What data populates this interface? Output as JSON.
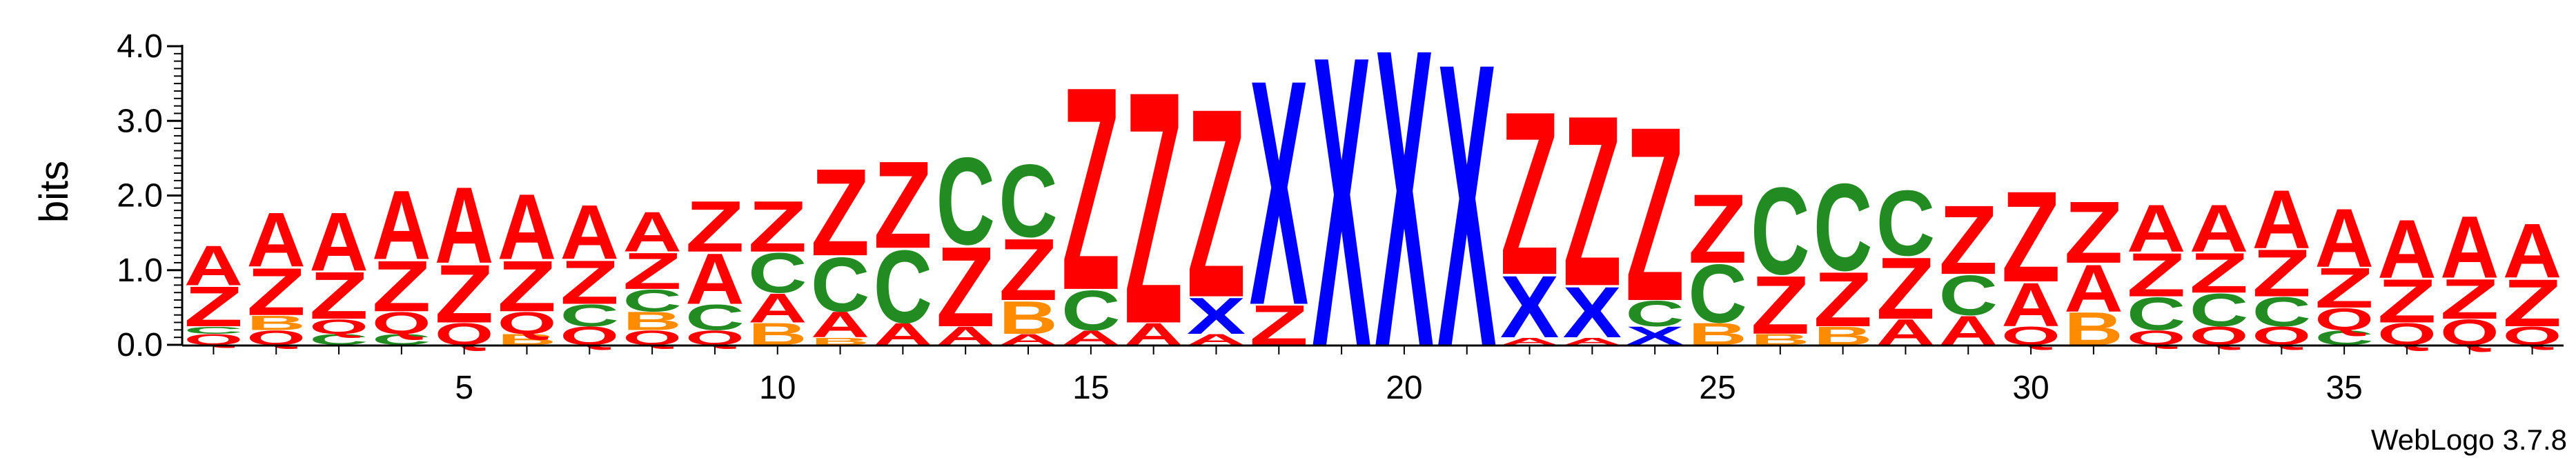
{
  "chart_data": {
    "type": "sequence-logo",
    "ylabel": "bits",
    "ylim": [
      0,
      4.0
    ],
    "yticks": [
      "0.0",
      "1.0",
      "2.0",
      "3.0",
      "4.0"
    ],
    "xticks": [
      "5",
      "10",
      "15",
      "20",
      "25",
      "30",
      "35"
    ],
    "xtick_positions": [
      5,
      10,
      15,
      20,
      25,
      30,
      35
    ],
    "credit": "WebLogo 3.7.8",
    "colors": {
      "A": "#ff0000",
      "Z": "#ff0000",
      "X": "#0000ff",
      "C": "#228b22",
      "B": "#ff8c00",
      "Q": "#ff0000"
    },
    "positions": [
      {
        "pos": 1,
        "stack": [
          [
            "Q",
            0.15
          ],
          [
            "C",
            0.1
          ],
          [
            "Z",
            0.55
          ],
          [
            "A",
            0.55
          ]
        ]
      },
      {
        "pos": 2,
        "stack": [
          [
            "Q",
            0.2
          ],
          [
            "B",
            0.2
          ],
          [
            "Z",
            0.65
          ],
          [
            "A",
            0.75
          ]
        ]
      },
      {
        "pos": 3,
        "stack": [
          [
            "C",
            0.15
          ],
          [
            "Q",
            0.2
          ],
          [
            "Z",
            0.65
          ],
          [
            "A",
            0.8
          ]
        ]
      },
      {
        "pos": 4,
        "stack": [
          [
            "C",
            0.15
          ],
          [
            "Q",
            0.3
          ],
          [
            "Z",
            0.7
          ],
          [
            "A",
            0.95
          ]
        ]
      },
      {
        "pos": 5,
        "stack": [
          [
            "Q",
            0.3
          ],
          [
            "Z",
            0.8
          ],
          [
            "A",
            1.05
          ]
        ]
      },
      {
        "pos": 6,
        "stack": [
          [
            "B",
            0.15
          ],
          [
            "Q",
            0.3
          ],
          [
            "Z",
            0.7
          ],
          [
            "A",
            0.9
          ]
        ]
      },
      {
        "pos": 7,
        "stack": [
          [
            "Q",
            0.25
          ],
          [
            "C",
            0.3
          ],
          [
            "Z",
            0.6
          ],
          [
            "A",
            0.75
          ]
        ]
      },
      {
        "pos": 8,
        "stack": [
          [
            "Q",
            0.2
          ],
          [
            "B",
            0.25
          ],
          [
            "C",
            0.3
          ],
          [
            "Z",
            0.5
          ],
          [
            "A",
            0.55
          ]
        ]
      },
      {
        "pos": 9,
        "stack": [
          [
            "Q",
            0.2
          ],
          [
            "C",
            0.35
          ],
          [
            "A",
            0.7
          ],
          [
            "Z",
            0.7
          ]
        ]
      },
      {
        "pos": 10,
        "stack": [
          [
            "B",
            0.3
          ],
          [
            "A",
            0.4
          ],
          [
            "C",
            0.55
          ],
          [
            "Z",
            0.7
          ]
        ]
      },
      {
        "pos": 11,
        "stack": [
          [
            "B",
            0.1
          ],
          [
            "A",
            0.35
          ],
          [
            "C",
            0.75
          ],
          [
            "Z",
            1.2
          ]
        ]
      },
      {
        "pos": 12,
        "stack": [
          [
            "A",
            0.3
          ],
          [
            "C",
            1.0
          ],
          [
            "Z",
            1.2
          ]
        ]
      },
      {
        "pos": 13,
        "stack": [
          [
            "A",
            0.25
          ],
          [
            "Z",
            1.1
          ],
          [
            "C",
            1.2
          ]
        ]
      },
      {
        "pos": 14,
        "stack": [
          [
            "A",
            0.15
          ],
          [
            "B",
            0.45
          ],
          [
            "Z",
            0.85
          ],
          [
            "C",
            1.0
          ]
        ]
      },
      {
        "pos": 15,
        "stack": [
          [
            "A",
            0.2
          ],
          [
            "C",
            0.55
          ],
          [
            "Z",
            2.8
          ]
        ]
      },
      {
        "pos": 16,
        "stack": [
          [
            "A",
            0.3
          ],
          [
            "Z",
            3.2
          ]
        ]
      },
      {
        "pos": 17,
        "stack": [
          [
            "A",
            0.15
          ],
          [
            "X",
            0.5
          ],
          [
            "Z",
            2.6
          ]
        ]
      },
      {
        "pos": 18,
        "stack": [
          [
            "Z",
            0.55
          ],
          [
            "X",
            3.1
          ]
        ]
      },
      {
        "pos": 19,
        "stack": [
          [
            "X",
            4.0
          ]
        ]
      },
      {
        "pos": 20,
        "stack": [
          [
            "X",
            4.1
          ]
        ]
      },
      {
        "pos": 21,
        "stack": [
          [
            "X",
            3.9
          ]
        ]
      },
      {
        "pos": 22,
        "stack": [
          [
            "A",
            0.1
          ],
          [
            "X",
            0.85
          ],
          [
            "Z",
            2.25
          ]
        ]
      },
      {
        "pos": 23,
        "stack": [
          [
            "A",
            0.1
          ],
          [
            "X",
            0.7
          ],
          [
            "Z",
            2.35
          ]
        ]
      },
      {
        "pos": 24,
        "stack": [
          [
            "X",
            0.25
          ],
          [
            "C",
            0.35
          ],
          [
            "Z",
            2.4
          ]
        ]
      },
      {
        "pos": 25,
        "stack": [
          [
            "B",
            0.3
          ],
          [
            "C",
            0.8
          ],
          [
            "Z",
            0.95
          ]
        ]
      },
      {
        "pos": 26,
        "stack": [
          [
            "B",
            0.15
          ],
          [
            "Z",
            0.8
          ],
          [
            "C",
            1.2
          ]
        ]
      },
      {
        "pos": 27,
        "stack": [
          [
            "B",
            0.25
          ],
          [
            "Z",
            0.75
          ],
          [
            "C",
            1.2
          ]
        ]
      },
      {
        "pos": 28,
        "stack": [
          [
            "A",
            0.35
          ],
          [
            "Z",
            0.85
          ],
          [
            "C",
            0.9
          ]
        ]
      },
      {
        "pos": 29,
        "stack": [
          [
            "A",
            0.4
          ],
          [
            "C",
            0.55
          ],
          [
            "Z",
            0.95
          ]
        ]
      },
      {
        "pos": 30,
        "stack": [
          [
            "Q",
            0.25
          ],
          [
            "A",
            0.6
          ],
          [
            "Z",
            1.25
          ]
        ]
      },
      {
        "pos": 31,
        "stack": [
          [
            "B",
            0.45
          ],
          [
            "A",
            0.65
          ],
          [
            "Z",
            0.85
          ]
        ]
      },
      {
        "pos": 32,
        "stack": [
          [
            "Q",
            0.2
          ],
          [
            "C",
            0.45
          ],
          [
            "Z",
            0.6
          ],
          [
            "A",
            0.65
          ]
        ]
      },
      {
        "pos": 33,
        "stack": [
          [
            "Q",
            0.25
          ],
          [
            "C",
            0.45
          ],
          [
            "Z",
            0.55
          ],
          [
            "A",
            0.65
          ]
        ]
      },
      {
        "pos": 34,
        "stack": [
          [
            "Q",
            0.25
          ],
          [
            "C",
            0.4
          ],
          [
            "Z",
            0.65
          ],
          [
            "A",
            0.8
          ]
        ]
      },
      {
        "pos": 35,
        "stack": [
          [
            "C",
            0.2
          ],
          [
            "Q",
            0.3
          ],
          [
            "Z",
            0.55
          ],
          [
            "A",
            0.8
          ]
        ]
      },
      {
        "pos": 36,
        "stack": [
          [
            "Q",
            0.3
          ],
          [
            "Z",
            0.6
          ],
          [
            "A",
            0.8
          ]
        ]
      },
      {
        "pos": 37,
        "stack": [
          [
            "Q",
            0.35
          ],
          [
            "Z",
            0.55
          ],
          [
            "A",
            0.85
          ]
        ]
      },
      {
        "pos": 38,
        "stack": [
          [
            "Q",
            0.25
          ],
          [
            "Z",
            0.65
          ],
          [
            "A",
            0.75
          ]
        ]
      }
    ]
  }
}
